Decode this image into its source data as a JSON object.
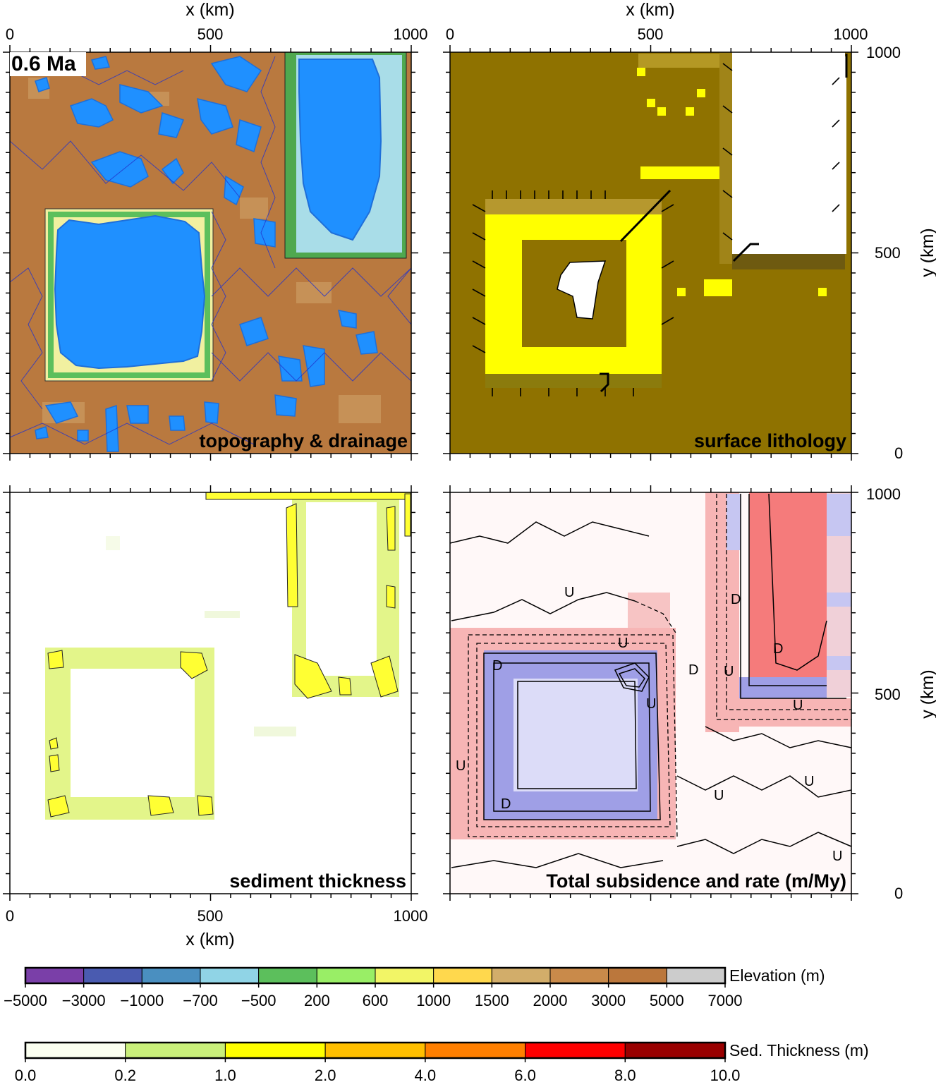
{
  "time_label": "0.6 Ma",
  "chart_data": [
    {
      "type": "heatmap",
      "title": "topography & drainage",
      "xlabel": "x (km)",
      "ylabel": "",
      "xlim": [
        0,
        1000
      ],
      "ylim": [
        0,
        1000
      ],
      "x_ticks": [
        "0",
        "500",
        "1000"
      ],
      "y_ticks": [],
      "xaxis_position": "top",
      "features": {
        "background_elevation_m": 3000,
        "basin_1": {
          "x": [
            90,
            490
          ],
          "y": [
            200,
            600
          ],
          "elevation_m": -3000
        },
        "basin_2": {
          "x": [
            700,
            1000
          ],
          "y": [
            490,
            1000
          ],
          "elevation_m": -3000
        },
        "lakes": [
          {
            "x": 240,
            "y": 860
          },
          {
            "x": 290,
            "y": 760
          },
          {
            "x": 400,
            "y": 900
          },
          {
            "x": 120,
            "y": 920
          },
          {
            "x": 190,
            "y": 730
          },
          {
            "x": 620,
            "y": 300
          },
          {
            "x": 650,
            "y": 180
          },
          {
            "x": 720,
            "y": 200
          },
          {
            "x": 860,
            "y": 270
          },
          {
            "x": 140,
            "y": 60
          },
          {
            "x": 260,
            "y": 80
          },
          {
            "x": 500,
            "y": 120
          }
        ]
      }
    },
    {
      "type": "heatmap",
      "title": "surface lithology",
      "xlabel": "x (km)",
      "ylabel": "y (km)",
      "xlim": [
        0,
        1000
      ],
      "ylim": [
        0,
        1000
      ],
      "x_ticks": [
        "0",
        "500",
        "1000"
      ],
      "y_ticks": [
        "0",
        "500",
        "1000"
      ],
      "xaxis_position": "top",
      "yaxis_position": "right"
    },
    {
      "type": "heatmap",
      "title": "sediment thickness",
      "xlabel": "x (km)",
      "ylabel": "",
      "xlim": [
        0,
        1000
      ],
      "ylim": [
        0,
        1000
      ],
      "x_ticks": [
        "0",
        "500",
        "1000"
      ],
      "y_ticks": [],
      "xaxis_position": "bottom"
    },
    {
      "type": "heatmap",
      "title": "Total subsidence  and rate (m/My)",
      "xlabel": "",
      "ylabel": "y (km)",
      "xlim": [
        0,
        1000
      ],
      "ylim": [
        0,
        1000
      ],
      "x_ticks": [],
      "y_ticks": [
        "0",
        "500",
        "1000"
      ],
      "yaxis_position": "right",
      "contour_labels": [
        "U",
        "D",
        "U",
        "D",
        "U",
        "U",
        "U",
        "D",
        "D",
        "D",
        "U",
        "U",
        "U",
        "U"
      ]
    }
  ],
  "colorbars": [
    {
      "label": "Elevation (m)",
      "ticks": [
        "−5000",
        "−3000",
        "−1000",
        "−700",
        "−500",
        "200",
        "600",
        "1000",
        "1500",
        "2000",
        "3000",
        "5000",
        "7000"
      ],
      "colors": [
        "#7a3fa8",
        "#4a5bb0",
        "#4a8fc0",
        "#90d4e6",
        "#5cbf5c",
        "#99ee66",
        "#f2f566",
        "#ffd84d",
        "#d2ad6a",
        "#c98a4a",
        "#bb773c",
        "#cccccc"
      ]
    },
    {
      "label": "Sed. Thickness (m)",
      "ticks": [
        "0.0",
        "0.2",
        "1.0",
        "2.0",
        "4.0",
        "6.0",
        "8.0",
        "10.0"
      ],
      "colors": [
        "#fbfff0",
        "#c9ef7a",
        "#ffff00",
        "#ffbf00",
        "#ff7f00",
        "#ff0000",
        "#990000"
      ]
    }
  ]
}
